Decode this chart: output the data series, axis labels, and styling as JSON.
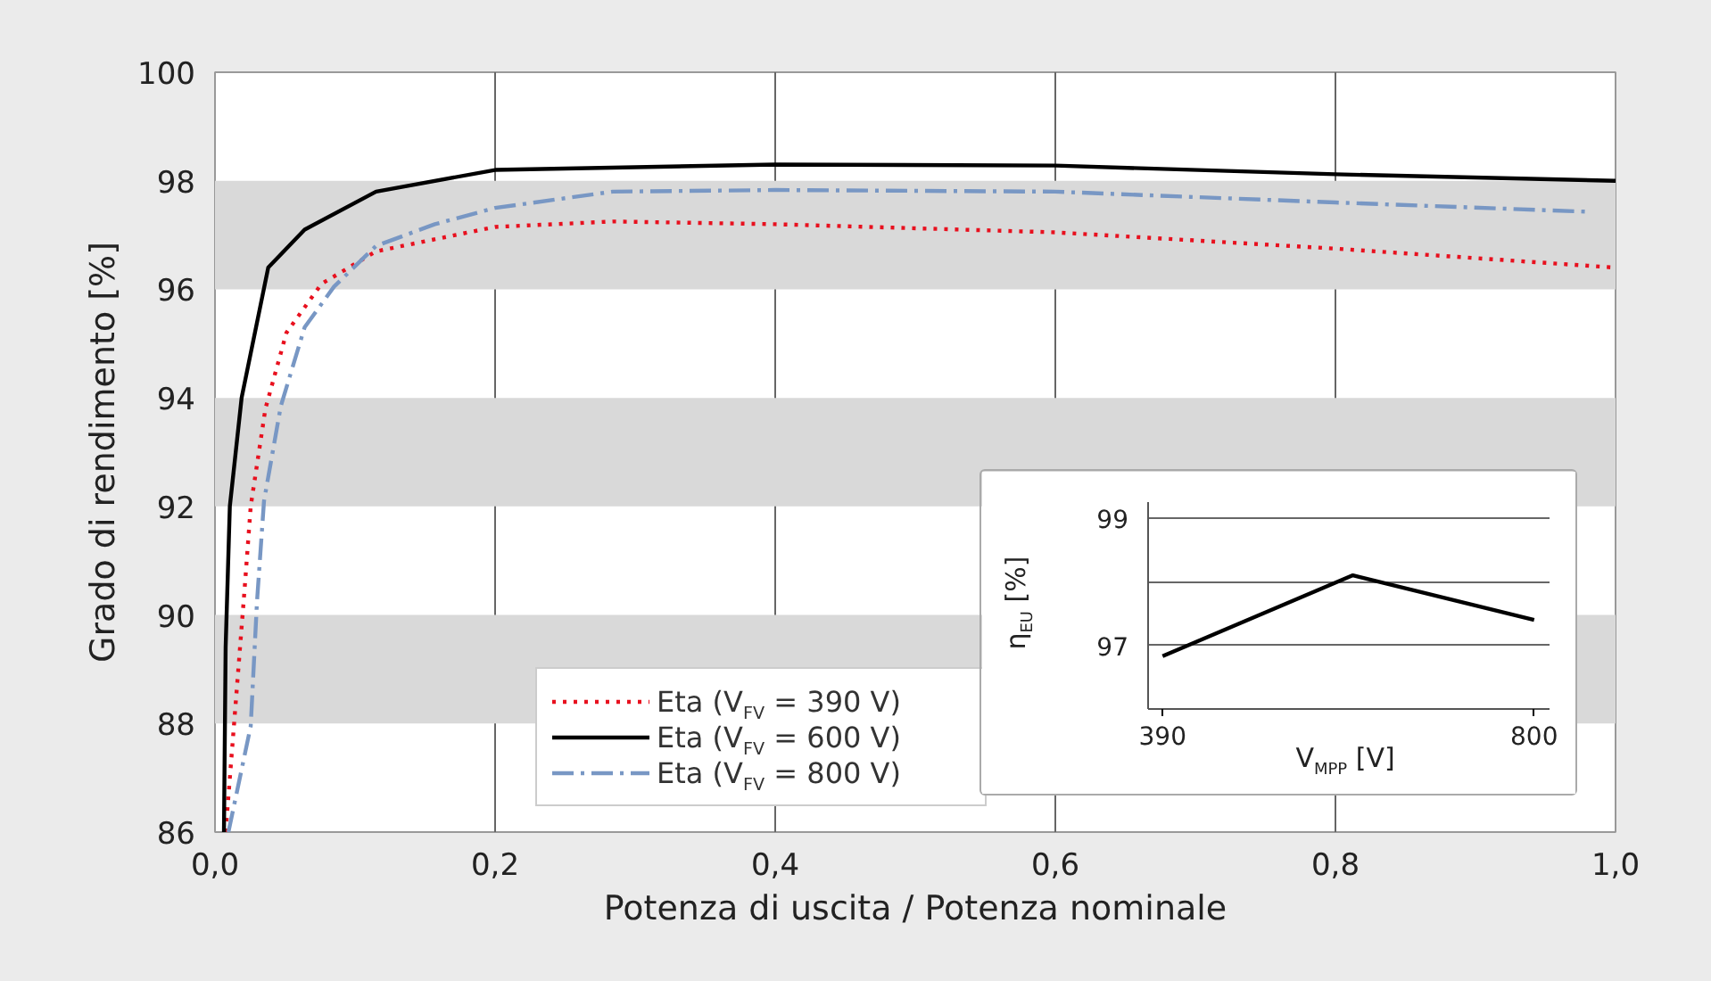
{
  "chart_data": [
    {
      "type": "line",
      "xlabel": "Potenza di uscita / Potenza nominale",
      "ylabel": "Grado di rendimento [%]",
      "xlim": [
        0,
        1
      ],
      "xticks": [
        {
          "value": 0,
          "label": "0,0"
        },
        {
          "value": 0.2,
          "label": "0,2"
        },
        {
          "value": 0.4,
          "label": "0,4"
        },
        {
          "value": 0.6,
          "label": "0,6"
        },
        {
          "value": 0.8,
          "label": "0,8"
        },
        {
          "value": 1,
          "label": "1,0"
        }
      ],
      "ylim": [
        86,
        100
      ],
      "yticks": [
        86,
        88,
        90,
        92,
        94,
        96,
        98,
        100
      ],
      "grid": "x",
      "legend": "bottom",
      "marker": "none",
      "bands": [
        {
          "axis": "y",
          "from": 88,
          "to": 90,
          "color": "#d9d9d9"
        },
        {
          "axis": "y",
          "from": 92,
          "to": 94,
          "color": "#d9d9d9"
        },
        {
          "axis": "y",
          "from": 96,
          "to": 98,
          "color": "#d9d9d9"
        }
      ],
      "series": [
        {
          "name": "Eta (V$_{FV}$ = 390 V)",
          "color": "#e8101e",
          "line_style": "dotted",
          "x": [
            0.0076,
            0.0212,
            0.0255,
            0.036,
            0.051,
            0.076,
            0.115,
            0.2,
            0.284,
            0.4,
            0.6,
            0.8,
            1.0
          ],
          "values": [
            86,
            90.5,
            92.0,
            93.8,
            95.2,
            96.1,
            96.7,
            97.15,
            97.25,
            97.2,
            97.05,
            96.75,
            96.4
          ]
        },
        {
          "name": "Eta (V$_{FV}$ = 600 V)",
          "color": "#000000",
          "line_style": "solid",
          "x": [
            0.0064,
            0.0076,
            0.0106,
            0.019,
            0.038,
            0.064,
            0.115,
            0.2,
            0.4,
            0.6,
            0.8,
            1.0
          ],
          "values": [
            86,
            89.4,
            92.0,
            94.0,
            96.4,
            97.1,
            97.8,
            98.2,
            98.3,
            98.28,
            98.12,
            98.0
          ]
        },
        {
          "name": "Eta (V$_{FV}$ = 800 V)",
          "color": "#7897c4",
          "line_style": "dashdot",
          "x": [
            0.0096,
            0.0255,
            0.03,
            0.035,
            0.047,
            0.064,
            0.085,
            0.115,
            0.157,
            0.2,
            0.284,
            0.4,
            0.6,
            0.8,
            0.98
          ],
          "values": [
            86,
            87.95,
            90.25,
            92.1,
            93.85,
            95.3,
            96.05,
            96.8,
            97.2,
            97.5,
            97.8,
            97.83,
            97.8,
            97.6,
            97.43
          ]
        }
      ]
    },
    {
      "type": "line",
      "xlabel": "V$_{MPP}$ [V]",
      "ylabel": "η$_{EU}$ [%]",
      "xlim": [
        374,
        817
      ],
      "xticks": [
        390,
        800
      ],
      "ylim": [
        96,
        99.25
      ],
      "yticks": [
        97,
        {
          "value": 98,
          "label": null
        },
        99
      ],
      "grid": "y",
      "marker": "none",
      "series": [
        {
          "color": "#000000",
          "line_style": "solid",
          "x": [
            390,
            600,
            800
          ],
          "values": [
            96.83,
            98.1,
            97.4
          ]
        }
      ]
    }
  ]
}
